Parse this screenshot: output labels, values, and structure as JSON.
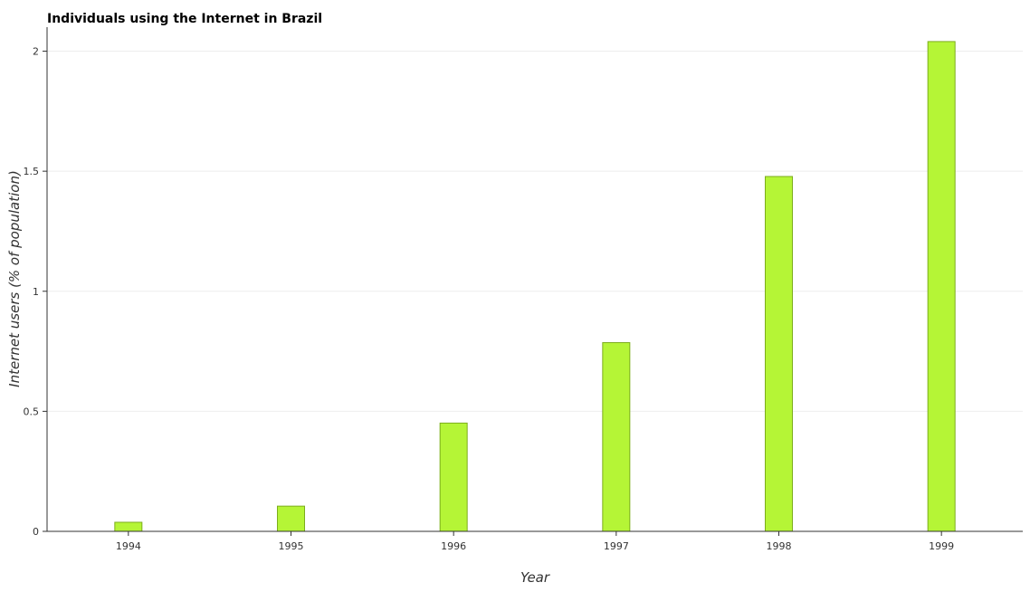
{
  "chart_data": {
    "type": "bar",
    "title": "Individuals using the Internet in Brazil",
    "xlabel": "Year",
    "ylabel": "Internet users (% of population)",
    "categories": [
      "1994",
      "1995",
      "1996",
      "1997",
      "1998",
      "1999"
    ],
    "values": [
      0.0378,
      0.105,
      0.451,
      0.786,
      1.478,
      2.04
    ],
    "ylim": [
      0,
      2.1
    ],
    "yticks": [
      0,
      0.5,
      1,
      1.5,
      2
    ],
    "ytick_labels": [
      "0",
      "0.5",
      "1",
      "1.5",
      "2"
    ],
    "grid": true,
    "bar_color": "#b5f536",
    "bar_stroke_color": "#7cad1c",
    "legend": "none"
  }
}
